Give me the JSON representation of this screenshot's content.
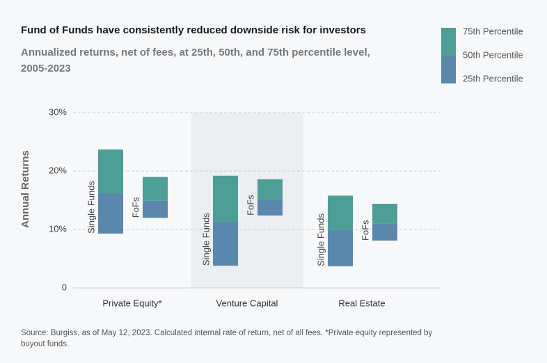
{
  "chart_data": {
    "type": "floating-bar",
    "title": "Fund of Funds have consistently reduced downside risk for investors",
    "subtitle": [
      "Annualized returns, net of fees, at 25th, 50th, and 75th percentile level,",
      "2005-2023"
    ],
    "y_label": "Annual Returns",
    "ylim": [
      0,
      30
    ],
    "yticks": [
      0,
      {
        "value": 10,
        "label": "10%"
      },
      {
        "value": 20,
        "label": "20%"
      },
      {
        "value": 30,
        "label": "30%"
      }
    ],
    "grid": true,
    "legend": [
      {
        "name": "75th Percentile",
        "color": "#4e9e96"
      },
      {
        "name": "50th Percentile",
        "color": null
      },
      {
        "name": "25th Percentile",
        "color": "#5a87aa"
      }
    ],
    "groups": [
      {
        "name": "Private Equity*",
        "highlighted": false,
        "bars": [
          {
            "label": "Single Funds",
            "p25": 9.3,
            "p50": 16.2,
            "p75": 23.7
          },
          {
            "label": "FoFs",
            "p25": 12.0,
            "p50": 14.9,
            "p75": 19.0
          }
        ]
      },
      {
        "name": "Venture Capital",
        "highlighted": true,
        "bars": [
          {
            "label": "Single Funds",
            "p25": 3.8,
            "p50": 11.3,
            "p75": 19.2
          },
          {
            "label": "FoFs",
            "p25": 12.4,
            "p50": 15.2,
            "p75": 18.6
          }
        ]
      },
      {
        "name": "Real Estate",
        "highlighted": false,
        "bars": [
          {
            "label": "Single Funds",
            "p25": 3.7,
            "p50": 9.9,
            "p75": 15.8
          },
          {
            "label": "FoFs",
            "p25": 8.1,
            "p50": 11.0,
            "p75": 14.4
          }
        ]
      }
    ],
    "source": [
      "Source: Burgiss, as of May 12, 2023. Calculated internal rate of return, net of all fees. *Private equity represented by",
      "buyout funds."
    ]
  }
}
